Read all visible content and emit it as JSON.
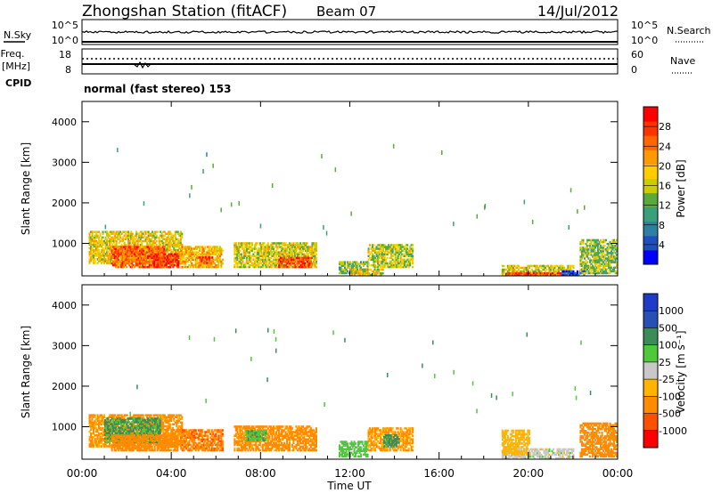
{
  "header": {
    "station": "Zhongshan Station (fitACF)",
    "beam": "Beam 07",
    "date": "14/Jul/2012"
  },
  "top_panels": {
    "nsky_label": "N.Sky",
    "nsky_ticks": [
      "10^5",
      "10^0"
    ],
    "nsearch_label": "N.Search",
    "nsearch_ticks": [
      "10^5",
      "10^0"
    ],
    "freq_label_1": "Freq.",
    "freq_label_2": "[MHz]",
    "freq_ticks": [
      "18",
      "8"
    ],
    "nave_label": "Nave",
    "nave_ticks": [
      "60",
      "0"
    ],
    "cpid_label": "CPID",
    "cpid_text": "normal (fast stereo) 153"
  },
  "chart_data": [
    {
      "type": "heatmap",
      "name": "power",
      "ylabel": "Slant Range [km]",
      "yticks": [
        "1000",
        "2000",
        "3000",
        "4000"
      ],
      "ylim": [
        200,
        4500
      ],
      "xlim": [
        0,
        24
      ],
      "colorbar": {
        "label": "Power [dB]",
        "ticks": [
          "4",
          "8",
          "12",
          "16",
          "20",
          "24",
          "28"
        ],
        "range": [
          0,
          32
        ],
        "colors": [
          "#0000ff",
          "#1f4fbf",
          "#2e7fa0",
          "#3aa07a",
          "#5aaa3a",
          "#cccc00",
          "#ffcc00",
          "#ff9900",
          "#ff6600",
          "#ff3300",
          "#ff0000"
        ]
      },
      "regions": [
        {
          "t0": 0.3,
          "t1": 4.5,
          "r0": 500,
          "r1": 1300,
          "v": 18
        },
        {
          "t0": 1.3,
          "t1": 3.7,
          "r0": 400,
          "r1": 900,
          "v": 25
        },
        {
          "t0": 3.2,
          "t1": 4.3,
          "r0": 400,
          "r1": 750,
          "v": 29
        },
        {
          "t0": 4.4,
          "t1": 6.3,
          "r0": 400,
          "r1": 900,
          "v": 20
        },
        {
          "t0": 5.2,
          "t1": 5.8,
          "r0": 500,
          "r1": 650,
          "v": 26
        },
        {
          "t0": 6.8,
          "t1": 10.5,
          "r0": 400,
          "r1": 1000,
          "v": 17
        },
        {
          "t0": 8.8,
          "t1": 10.3,
          "r0": 400,
          "r1": 650,
          "v": 27
        },
        {
          "t0": 11.5,
          "t1": 12.8,
          "r0": 250,
          "r1": 550,
          "v": 13
        },
        {
          "t0": 12.8,
          "t1": 14.8,
          "r0": 400,
          "r1": 950,
          "v": 16
        },
        {
          "t0": 12.0,
          "t1": 13.5,
          "r0": 200,
          "r1": 350,
          "v": 18
        },
        {
          "t0": 18.8,
          "t1": 22.0,
          "r0": 200,
          "r1": 450,
          "v": 17
        },
        {
          "t0": 19.0,
          "t1": 21.5,
          "r0": 200,
          "r1": 280,
          "v": 26
        },
        {
          "t0": 21.5,
          "t1": 22.5,
          "r0": 200,
          "r1": 300,
          "v": 4
        },
        {
          "t0": 22.3,
          "t1": 24.0,
          "r0": 250,
          "r1": 1100,
          "v": 14
        }
      ]
    },
    {
      "type": "heatmap",
      "name": "velocity",
      "ylabel": "Slant Range [km]",
      "yticks": [
        "1000",
        "2000",
        "3000",
        "4000"
      ],
      "ylim": [
        200,
        4500
      ],
      "xlim": [
        0,
        24
      ],
      "xlabel": "Time UT",
      "xticks": [
        "00:00",
        "04:00",
        "08:00",
        "12:00",
        "16:00",
        "20:00",
        "00:00"
      ],
      "colorbar": {
        "label": "Velocity [m s⁻¹]",
        "ticks": [
          "1000",
          "500",
          "100",
          "25",
          "-25",
          "-100",
          "-500",
          "-1000"
        ],
        "bands": [
          "#1e3cc8",
          "#2850b4",
          "#3c8c5a",
          "#50c83c",
          "#c8c8c8",
          "#ffb400",
          "#ff8c00",
          "#ff5000",
          "#ff0000"
        ]
      },
      "regions": [
        {
          "t0": 0.3,
          "t1": 4.5,
          "r0": 500,
          "r1": 1300,
          "v": -150
        },
        {
          "t0": 1.0,
          "t1": 3.5,
          "r0": 600,
          "r1": 1200,
          "v": 120
        },
        {
          "t0": 1.3,
          "t1": 4.3,
          "r0": 400,
          "r1": 800,
          "v": -250
        },
        {
          "t0": 4.4,
          "t1": 6.3,
          "r0": 400,
          "r1": 900,
          "v": -400
        },
        {
          "t0": 6.8,
          "t1": 10.5,
          "r0": 400,
          "r1": 1000,
          "v": -200
        },
        {
          "t0": 7.3,
          "t1": 8.2,
          "r0": 650,
          "r1": 900,
          "v": 80
        },
        {
          "t0": 11.5,
          "t1": 12.8,
          "r0": 250,
          "r1": 650,
          "v": 60
        },
        {
          "t0": 12.8,
          "t1": 14.8,
          "r0": 400,
          "r1": 950,
          "v": -120
        },
        {
          "t0": 13.5,
          "t1": 14.2,
          "r0": 500,
          "r1": 800,
          "v": 200
        },
        {
          "t0": 18.8,
          "t1": 22.0,
          "r0": 200,
          "r1": 450,
          "v": 0
        },
        {
          "t0": 18.8,
          "t1": 20.0,
          "r0": 300,
          "r1": 900,
          "v": -60
        },
        {
          "t0": 22.3,
          "t1": 24.0,
          "r0": 250,
          "r1": 1100,
          "v": -250
        }
      ]
    }
  ]
}
